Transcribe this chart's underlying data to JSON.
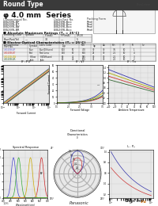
{
  "title_bar": "Round Type",
  "subtitle": "φ 4.0 mm  Series",
  "bg_color": "#ffffff",
  "title_bar_color": "#3a3a3a",
  "title_bar_text_color": "#ffffff",
  "grid_color": "#cccccc",
  "plot_bg": "#e8e8e8",
  "panasonic_text": "Panasonic",
  "chipfind_text": "ChipFind.ru",
  "chipfind_color": "#cc6600",
  "footer_text": "Panasonic",
  "part_numbers": [
    "LNG209LBP",
    "LNG209LBT",
    "LNG209LBW",
    "LNG209LBR"
  ],
  "table_header": [
    "Emitting Color",
    "Symbol",
    "Lens Color"
  ],
  "table_rows": [
    [
      "Blue/Diffused",
      "Blue",
      "Blue/Diffused"
    ],
    [
      "Red Lens",
      "Red",
      "Red Lens"
    ],
    [
      "Yellow/Diffused",
      "Yellow",
      "Yellow/Diffused"
    ],
    [
      "Jade",
      "Jade",
      "Jade"
    ]
  ],
  "section_header1": "Absolute Maximum Ratings",
  "section_header2": "Electro-Optical Characteristics",
  "graphs": [
    {
      "title": "I_F - P_D",
      "xlabel": "Forward Current",
      "ylabel": "Luminous Intensity"
    },
    {
      "title": "I_F - V_F",
      "xlabel": "Forward Voltage",
      "ylabel": "Forward Current"
    },
    {
      "title": "I_F - T_a",
      "xlabel": "Ambient Temperature",
      "ylabel": "IF"
    }
  ],
  "bottom_graphs": [
    {
      "title": "Spectral Response",
      "xlabel": "Wavelength"
    },
    {
      "title": "Directional Characteristics",
      "xlabel": ""
    },
    {
      "title": "I_F - P_D",
      "xlabel": ""
    }
  ]
}
